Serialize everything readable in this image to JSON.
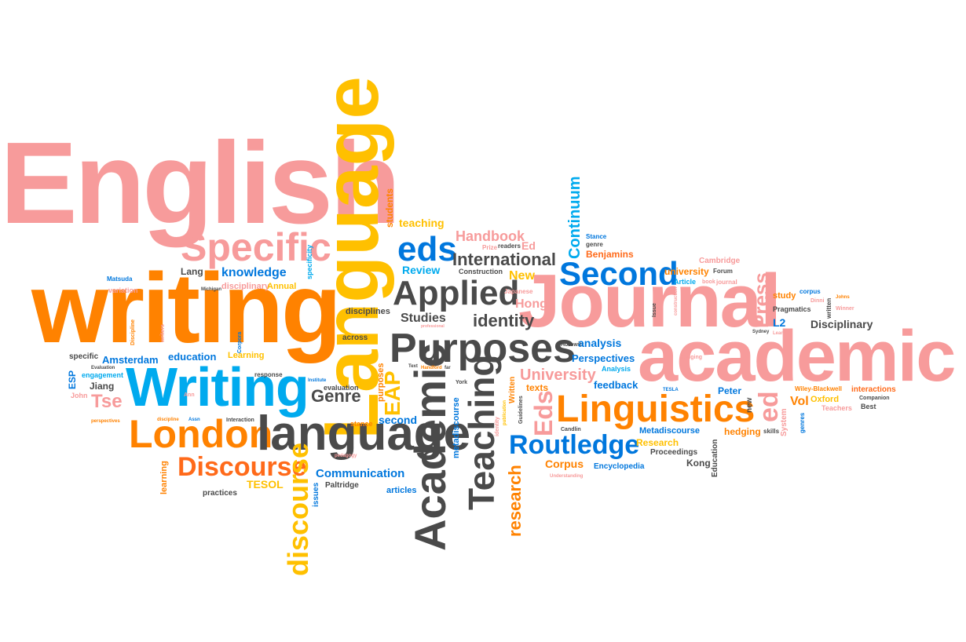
{
  "palette": {
    "pink": "#f79b9b",
    "orange": "#ff8200",
    "yellow": "#ffc000",
    "blue": "#00aaee",
    "blue_dark": "#0077dd",
    "gray": "#4a4a4a",
    "red_orange": "#ff6a1a"
  },
  "words": {
    "english": "English",
    "writing_big": "writing",
    "language_big": "Language",
    "journal": "Journal",
    "academic": "academic",
    "specific": "Specific",
    "writing_cap": "Writing",
    "london": "London",
    "language_small": "language",
    "discourse_cap": "Discourse",
    "discourse_vert": "discourse",
    "purposes": "Purposes",
    "applied": "Applied",
    "academic_vert": "Academic",
    "teaching_vert": "Teaching",
    "linguistics": "Linguistics",
    "second": "Second",
    "eds": "eds",
    "routledge": "Routledge",
    "international": "International",
    "handbook": "Handbook",
    "continuum": "Continuum",
    "eds_cap_vert": "Eds",
    "research_vert": "research",
    "eap_vert": "EAP",
    "press_vert": "Press",
    "ed_vert": "ed",
    "university": "University",
    "genre": "Genre",
    "identity": "identity",
    "studies": "Studies",
    "review": "Review",
    "knowledge": "knowledge",
    "lang": "Lang",
    "teaching_small": "teaching",
    "students": "students",
    "specificity": "specificity",
    "new": "New",
    "hong": "Hong",
    "japanese": "Japanese",
    "construction": "Construction",
    "prize": "Prize",
    "readers": "readers",
    "ed_small": "Ed",
    "benjamins": "Benjamins",
    "stance_small": "Stance",
    "genre_small": "genre",
    "cambridge": "Cambridge",
    "university_small": "university",
    "forum": "Forum",
    "article": "Article",
    "book": "book",
    "journal_small": "journal",
    "study": "study",
    "corpus_small": "corpus",
    "dinni": "Dinni",
    "johns": "Johns",
    "winner": "Winner",
    "pragmatics": "Pragmatics",
    "l2": "L2",
    "disciplinary_cap": "Disciplinary",
    "issue": "Issue",
    "construction_vert": "construction",
    "sydney": "Sydney",
    "learn": "Learn",
    "system_vert": "System",
    "written_vert": "written",
    "hedging_small": "Hedging",
    "tesla": "TESLA",
    "companion": "Companion",
    "peter": "Peter",
    "wiley": "Wiley-Blackwell",
    "interactions": "interactions",
    "oxford": "Oxford",
    "vol": "Vol",
    "teachers": "Teachers",
    "best": "Best",
    "new_vert": "new",
    "genres_vert": "genres",
    "metadiscourse": "Metadiscourse",
    "hedging": "hedging",
    "skills": "skills",
    "research": "Research",
    "proceedings": "Proceedings",
    "kong": "Kong",
    "education_vert": "Education",
    "candlin": "Candlin",
    "horowitz": "Horowitz",
    "perspectives": "Perspectives",
    "analysis": "analysis",
    "analysis_cap": "Analysis",
    "feedback": "feedback",
    "texts": "texts",
    "corpus": "Corpus",
    "encyclopedia": "Encyclopedia",
    "understanding": "Understanding",
    "matsuda": "Matsuda",
    "variation": "variation",
    "michigan": "Michigan",
    "disciplinary": "disciplinary",
    "annual": "Annual",
    "discipline_vert": "Discipline",
    "writers_vert": "writers",
    "corpora_vert": "Corpora",
    "disciplines": "disciplines",
    "across": "across",
    "specific_small": "specific",
    "amsterdam": "Amsterdam",
    "education": "education",
    "learning": "Learning",
    "evaluation_cap": "Evaluation",
    "engagement": "engagement",
    "esp_vert": "ESP",
    "jiang": "Jiang",
    "john": "John",
    "tse": "Tse",
    "perspectives_small": "perspectives",
    "ann": "Ann",
    "discipline": "discipline",
    "assn": "Assn",
    "interaction": "Interaction",
    "response": "response",
    "institute": "Institute",
    "evaluation": "evaluation",
    "stance": "stance",
    "pedagogy": "pedagogy",
    "second_small": "second",
    "communication": "Communication",
    "paltridge": "Paltridge",
    "articles": "articles",
    "issues_vert": "issues",
    "learning_vert": "learning",
    "practices": "practices",
    "tesol": "TESOL",
    "purposes_vert": "purposes",
    "metadiscourse_vert": "metadiscourse",
    "text": "Text",
    "handford": "Handford",
    "far": "far",
    "york": "York",
    "identity_vert": "identity",
    "publication_vert": "publication",
    "guidelines_vert": "Guidelines",
    "written_cap_vert": "Written",
    "professional": "professional"
  }
}
